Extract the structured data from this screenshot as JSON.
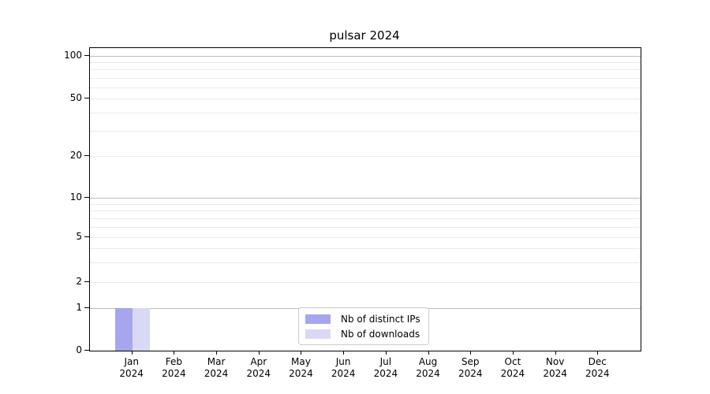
{
  "title": "pulsar 2024",
  "chart_data": {
    "type": "bar",
    "title": "pulsar 2024",
    "categories": [
      "Jan",
      "Feb",
      "Mar",
      "Apr",
      "May",
      "Jun",
      "Jul",
      "Aug",
      "Sep",
      "Oct",
      "Nov",
      "Dec"
    ],
    "category_year": "2024",
    "series": [
      {
        "name": "Nb of distinct IPs",
        "color": "#a6a6ee",
        "values": [
          1,
          0,
          0,
          0,
          0,
          0,
          0,
          0,
          0,
          0,
          0,
          0
        ]
      },
      {
        "name": "Nb of downloads",
        "color": "#d9d9f6",
        "values": [
          1,
          0,
          0,
          0,
          0,
          0,
          0,
          0,
          0,
          0,
          0,
          0
        ]
      }
    ],
    "yscale": "symlog",
    "ylim": [
      0,
      114
    ],
    "y_ticks": [
      0,
      1,
      2,
      5,
      10,
      20,
      50,
      100
    ],
    "y_minor_ticks": [
      3,
      4,
      6,
      7,
      8,
      9,
      30,
      40,
      60,
      70,
      80,
      90
    ],
    "y_major_gridlines": [
      1,
      10,
      100
    ],
    "xlabel": "",
    "ylabel": "",
    "grid": "horizontal",
    "legend_position": "lower center",
    "colors": {
      "grid_major": "#bdbdbd",
      "grid_minor": "#ebebeb",
      "spine": "#000000",
      "background": "#ffffff"
    }
  }
}
